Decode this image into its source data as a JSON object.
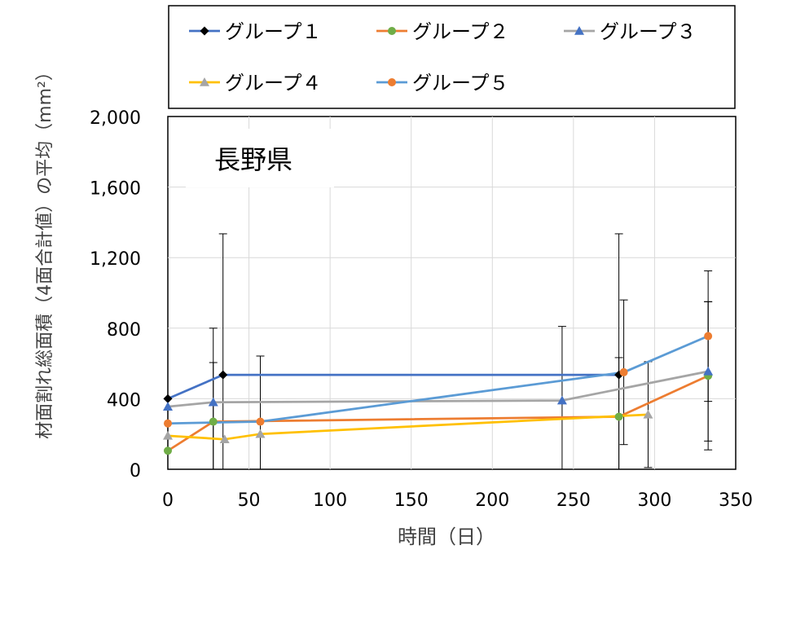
{
  "chart_data": {
    "type": "line",
    "title": "長野県",
    "xlabel": "時間（日）",
    "ylabel": "材面割れ総面積（4面合計値）の平均（mm²）",
    "xlim": [
      0,
      350
    ],
    "ylim": [
      0,
      2000
    ],
    "x_ticks": [
      "0",
      "50",
      "100",
      "150",
      "200",
      "250",
      "300",
      "350"
    ],
    "y_ticks": [
      "0",
      "400",
      "800",
      "1,200",
      "1,600",
      "2,000"
    ],
    "grid": true,
    "legend_position": "top",
    "series": [
      {
        "name": "グループ１",
        "color": "#4472C4",
        "marker": "diamond",
        "marker_color": "#000000",
        "points": [
          {
            "x": 0,
            "y": 400,
            "err": 0
          },
          {
            "x": 34,
            "y": 535,
            "err": 800
          },
          {
            "x": 278,
            "y": 535,
            "err": 800
          }
        ]
      },
      {
        "name": "グループ２",
        "color": "#ED7D31",
        "marker": "circle",
        "marker_color": "#70AD47",
        "points": [
          {
            "x": 0,
            "y": 105,
            "err": 0
          },
          {
            "x": 28,
            "y": 270,
            "err": 335
          },
          {
            "x": 278,
            "y": 298,
            "err": 335
          },
          {
            "x": 333,
            "y": 530,
            "err": 420
          }
        ]
      },
      {
        "name": "グループ３",
        "color": "#A5A5A5",
        "marker": "triangle",
        "marker_color": "#4472C4",
        "points": [
          {
            "x": 0,
            "y": 355,
            "err": 0
          },
          {
            "x": 28,
            "y": 380,
            "err": 420
          },
          {
            "x": 243,
            "y": 390,
            "err": 420
          },
          {
            "x": 333,
            "y": 555,
            "err": 395
          }
        ]
      },
      {
        "name": "グループ４",
        "color": "#FFC000",
        "marker": "triangle",
        "marker_color": "#A5A5A5",
        "points": [
          {
            "x": 0,
            "y": 190,
            "err": 0
          },
          {
            "x": 35,
            "y": 170,
            "err": 0
          },
          {
            "x": 57,
            "y": 200,
            "err": 0
          },
          {
            "x": 296,
            "y": 310,
            "err": 300
          }
        ]
      },
      {
        "name": "グループ５",
        "color": "#5B9BD5",
        "marker": "circle",
        "marker_color": "#ED7D31",
        "points": [
          {
            "x": 0,
            "y": 260,
            "err": 0
          },
          {
            "x": 57,
            "y": 270,
            "err": 372
          },
          {
            "x": 281,
            "y": 550,
            "err": 410
          },
          {
            "x": 333,
            "y": 755,
            "err": 370
          }
        ]
      }
    ]
  }
}
